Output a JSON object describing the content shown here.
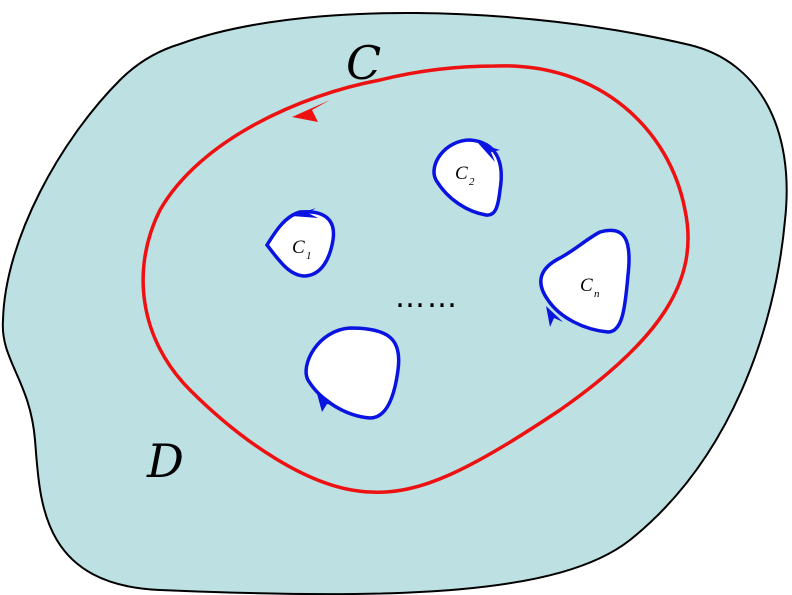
{
  "labels": {
    "outer_contour": "C",
    "region": "D",
    "contour_1": "C",
    "contour_1_sub": "1",
    "contour_2": "C",
    "contour_2_sub": "2",
    "contour_n": "C",
    "contour_n_sub": "n",
    "ellipsis": "……"
  },
  "colors": {
    "region_fill": "#bde0e2",
    "region_stroke": "#000000",
    "outer_contour": "#ee1111",
    "inner_contours": "#0a14e0",
    "holes": "#ffffff"
  }
}
